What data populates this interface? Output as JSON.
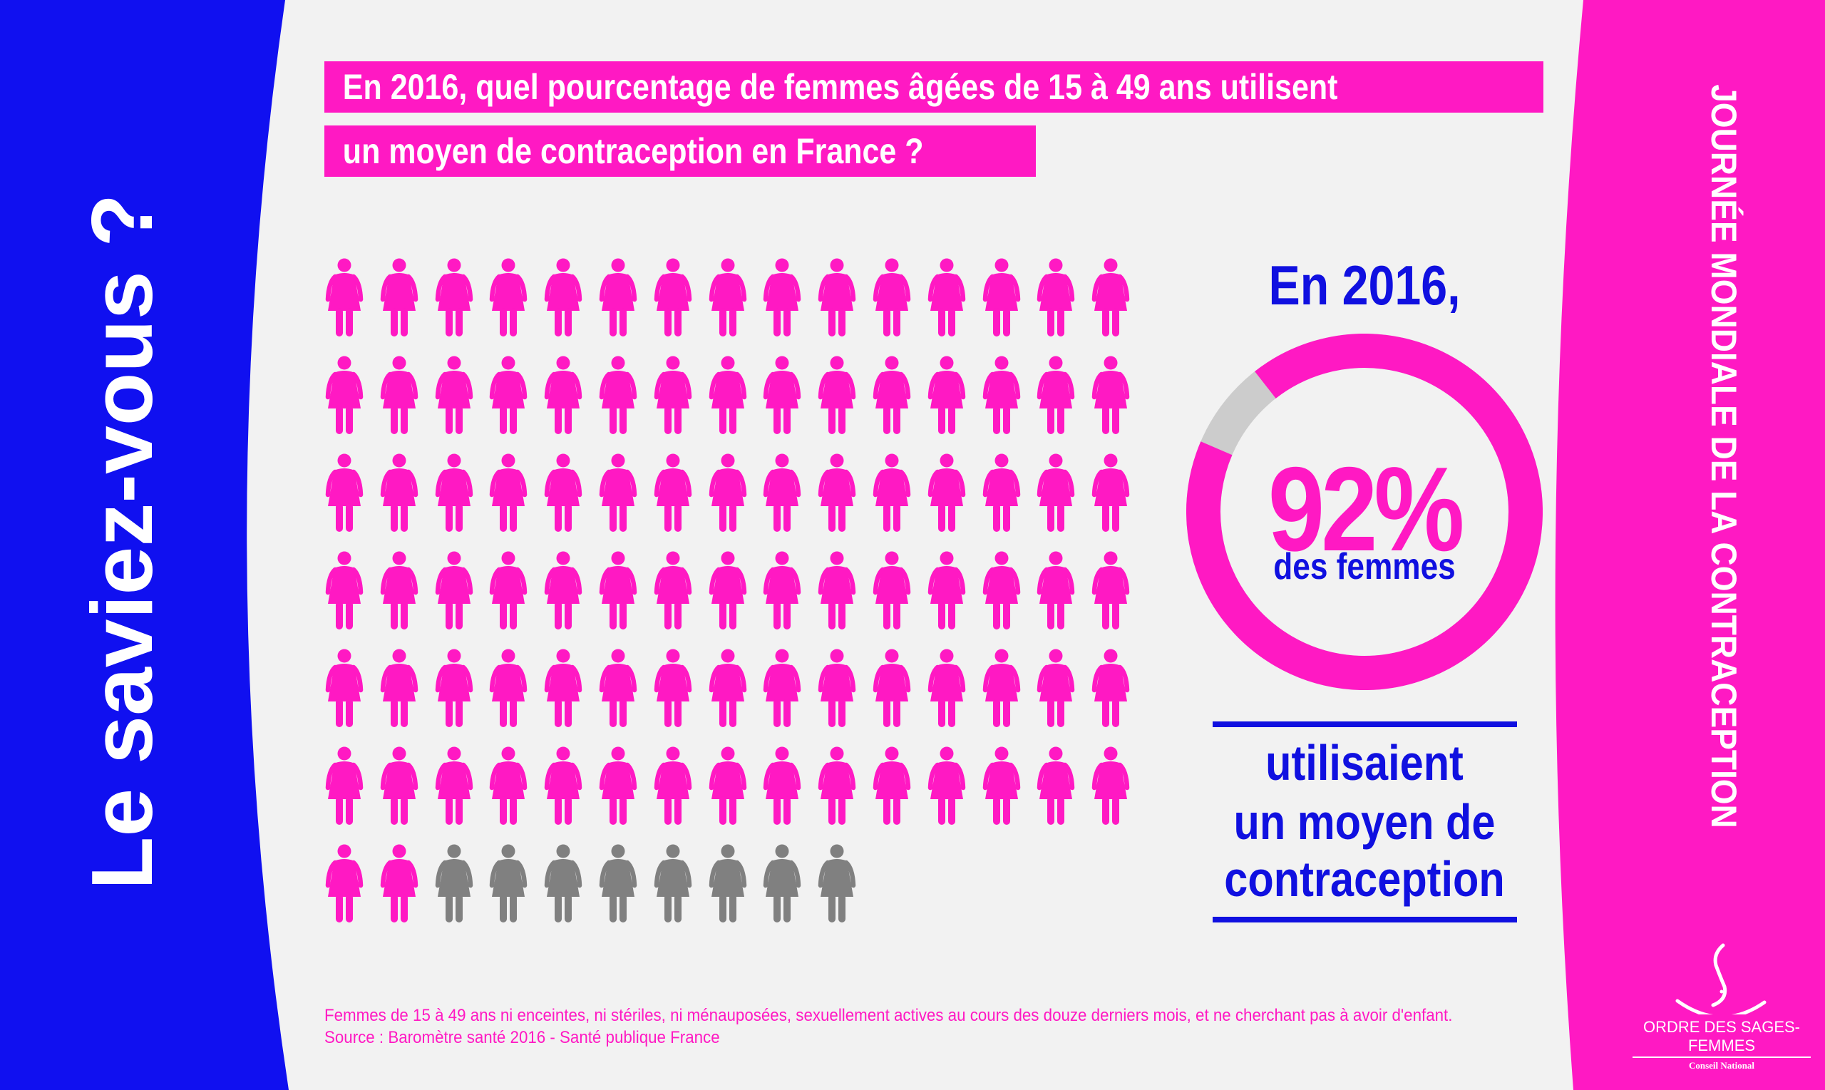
{
  "colors": {
    "blue": "#1010f0",
    "pink": "#ff19c3",
    "grey": "#808080",
    "background": "#f2f2f2",
    "ring_grey": "#cccccc"
  },
  "side_left": "Le saviez-vous ?",
  "side_right": "JOURNÉE MONDIALE DE LA CONTRACEPTION",
  "question": {
    "line1": "En 2016, quel pourcentage de femmes âgées de 15 à 49 ans utilisent",
    "line2": "un moyen de contraception en France ?"
  },
  "figures": {
    "total": 100,
    "highlighted": 92,
    "per_row": 15,
    "icon": "woman-icon"
  },
  "stat": {
    "year_label": "En 2016,",
    "percent_label": "92%",
    "percent_value": 92,
    "subject": "des femmes",
    "lines": [
      "utilisaient",
      "un moyen de",
      "contraception"
    ]
  },
  "footer": {
    "note": "Femmes de 15 à 49 ans ni enceintes, ni stériles, ni ménauposées, sexuellement actives au cours des douze derniers mois, et ne cherchant pas à avoir d'enfant.",
    "source": "Source : Baromètre santé 2016 - Santé publique France"
  },
  "logo": {
    "name": "ORDRE DES SAGES-FEMMES",
    "subtitle": "Conseil National"
  }
}
